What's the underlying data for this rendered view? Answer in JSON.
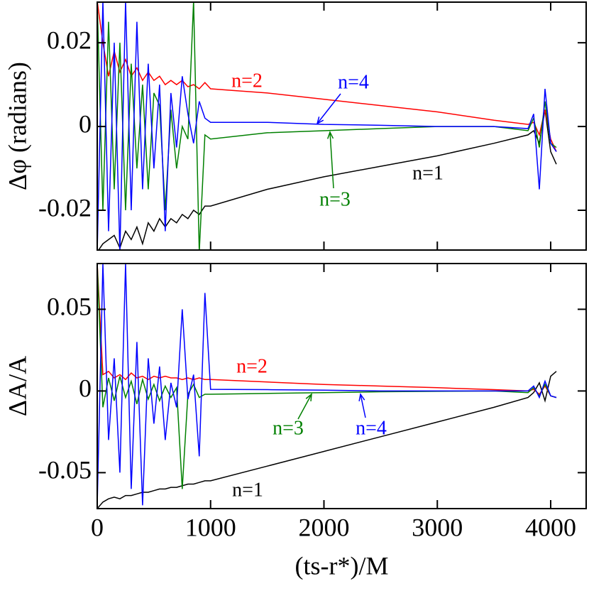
{
  "chart_data": [
    {
      "type": "line",
      "y_label": "Δφ (radians)",
      "x": [
        0,
        50,
        100,
        150,
        200,
        250,
        300,
        350,
        400,
        450,
        500,
        550,
        600,
        650,
        700,
        750,
        800,
        850,
        900,
        950,
        1000,
        1500,
        2000,
        2500,
        3000,
        3500,
        3800,
        3850,
        3900,
        3950,
        4000,
        4050
      ],
      "xlim": [
        0,
        4313
      ],
      "xticks": [
        0,
        1000,
        2000,
        3000,
        4000
      ],
      "ylim": [
        -0.0295,
        0.0297
      ],
      "yticks": [
        -0.02,
        0,
        0.02
      ],
      "series": [
        {
          "name": "n=1",
          "color": "#000000",
          "values": [
            -0.03,
            -0.028,
            -0.027,
            -0.026,
            -0.029,
            -0.025,
            -0.027,
            -0.024,
            -0.028,
            -0.023,
            -0.025,
            -0.022,
            -0.024,
            -0.022,
            -0.023,
            -0.021,
            -0.022,
            -0.02,
            -0.021,
            -0.019,
            -0.019,
            -0.015,
            -0.012,
            -0.0095,
            -0.007,
            -0.004,
            -0.002,
            -0.001,
            -0.004,
            0.004,
            -0.006,
            -0.009
          ]
        },
        {
          "name": "n=2",
          "color": "#ff0000",
          "values": [
            0.03,
            0.02,
            0.012,
            0.018,
            0.013,
            0.016,
            0.012,
            0.014,
            0.011,
            0.013,
            0.011,
            0.012,
            0.01,
            0.011,
            0.01,
            0.011,
            0.0095,
            0.01,
            0.009,
            0.0105,
            0.009,
            0.008,
            0.0065,
            0.005,
            0.0035,
            0.0015,
            0.0005,
            0.001,
            -0.002,
            0.004,
            -0.003,
            -0.006
          ]
        },
        {
          "name": "n=3",
          "color": "#008000",
          "values": [
            0.03,
            -0.02,
            0.025,
            -0.015,
            0.02,
            -0.02,
            0.015,
            -0.01,
            0.01,
            -0.015,
            0.008,
            0.005,
            -0.02,
            0.004,
            -0.01,
            0,
            -0.003,
            0.03,
            -0.03,
            -0.002,
            -0.003,
            -0.0015,
            -0.001,
            -0.0005,
            0,
            0,
            -0.001,
            0.002,
            -0.005,
            0.006,
            -0.004,
            -0.005
          ]
        },
        {
          "name": "n=4",
          "color": "#0000ff",
          "values": [
            -0.03,
            0.03,
            -0.025,
            0.02,
            -0.03,
            0.03,
            -0.02,
            0.025,
            -0.015,
            0.015,
            -0.01,
            0.01,
            -0.025,
            0.008,
            -0.005,
            0.012,
            0.003,
            -0.004,
            0.006,
            0.002,
            0.001,
            0.001,
            0.0005,
            0.0003,
            0,
            0,
            -0.0005,
            0.003,
            -0.015,
            0.009,
            -0.004,
            -0.006
          ]
        }
      ]
    },
    {
      "type": "line",
      "y_label": "ΔA/A",
      "x_label": "(ts-r*)/M",
      "x": [
        0,
        50,
        100,
        150,
        200,
        250,
        300,
        350,
        400,
        450,
        500,
        550,
        600,
        650,
        700,
        750,
        800,
        850,
        900,
        950,
        1000,
        1500,
        2000,
        2500,
        3000,
        3500,
        3800,
        3850,
        3900,
        3950,
        4000,
        4050
      ],
      "xlim": [
        0,
        4313
      ],
      "xticks": [
        0,
        1000,
        2000,
        3000,
        4000
      ],
      "ylim": [
        -0.072,
        0.078
      ],
      "yticks": [
        -0.05,
        0,
        0.05
      ],
      "series": [
        {
          "name": "n=1",
          "color": "#000000",
          "values": [
            -0.072,
            -0.068,
            -0.066,
            -0.065,
            -0.066,
            -0.064,
            -0.064,
            -0.063,
            -0.062,
            -0.062,
            -0.061,
            -0.06,
            -0.06,
            -0.059,
            -0.059,
            -0.058,
            -0.057,
            -0.057,
            -0.056,
            -0.055,
            -0.055,
            -0.046,
            -0.037,
            -0.028,
            -0.019,
            -0.01,
            -0.004,
            -0.001,
            0.005,
            -0.006,
            0.009,
            0.012
          ]
        },
        {
          "name": "n=2",
          "color": "#ff0000",
          "values": [
            0.078,
            0.01,
            0.012,
            0.008,
            0.01,
            0.007,
            0.011,
            0.008,
            0.009,
            0.007,
            0.009,
            0.008,
            0.009,
            0.008,
            0.008,
            0.007,
            0.008,
            0.007,
            0.008,
            0.007,
            0.007,
            0.0055,
            0.004,
            0.003,
            0.002,
            0.0008,
            0,
            0.001,
            -0.002,
            0.003,
            -0.003,
            -0.004
          ]
        },
        {
          "name": "n=3",
          "color": "#008000",
          "values": [
            0.078,
            -0.01,
            0.008,
            -0.006,
            0.009,
            -0.004,
            0.006,
            -0.008,
            0.007,
            -0.005,
            0.004,
            -0.006,
            0.003,
            -0.004,
            0.002,
            -0.06,
            -0.002,
            0.004,
            -0.004,
            -0.002,
            -0.002,
            -0.0015,
            -0.001,
            -0.0005,
            -0.0002,
            0,
            -0.001,
            0.002,
            -0.003,
            0.004,
            -0.003,
            -0.004
          ]
        },
        {
          "name": "n=4",
          "color": "#0000ff",
          "values": [
            -0.07,
            0.078,
            -0.03,
            0.02,
            -0.05,
            0.078,
            -0.06,
            0.03,
            -0.07,
            0.02,
            -0.02,
            0.015,
            -0.03,
            0.005,
            -0.01,
            0.05,
            -0.005,
            0.01,
            -0.04,
            0.06,
            0.001,
            0.0008,
            0.0005,
            0,
            0,
            0,
            0,
            0.003,
            -0.004,
            0.006,
            -0.003,
            -0.004
          ]
        }
      ]
    }
  ]
}
